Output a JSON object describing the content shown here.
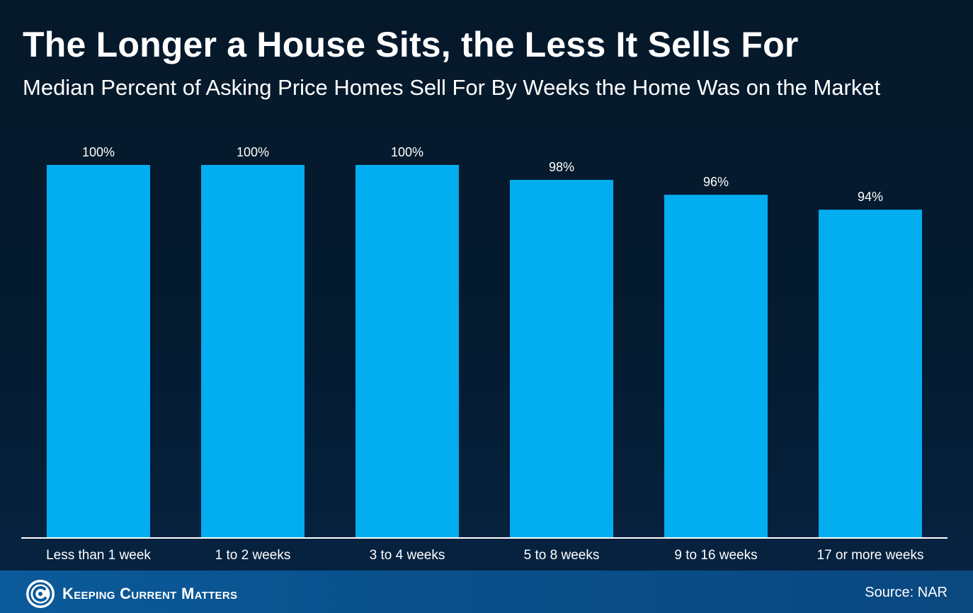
{
  "header": {
    "title": "The Longer a House Sits, the Less It Sells For",
    "subtitle": "Median Percent of Asking Price Homes Sell For By Weeks the Home Was on the Market"
  },
  "footer": {
    "brand": "Keeping Current Matters",
    "source": "Source: NAR"
  },
  "colors": {
    "bar": "#03aef0",
    "text": "#ffffff",
    "axis": "#ffffff"
  },
  "chart_data": {
    "type": "bar",
    "categories": [
      "Less than 1 week",
      "1 to 2 weeks",
      "3 to 4 weeks",
      "5 to 8 weeks",
      "9 to 16 weeks",
      "17 or more weeks"
    ],
    "values": [
      100,
      100,
      100,
      98,
      96,
      94
    ],
    "value_labels": [
      "100%",
      "100%",
      "100%",
      "98%",
      "96%",
      "94%"
    ],
    "ylim": [
      50,
      100
    ],
    "grid": false,
    "legend": "none"
  }
}
